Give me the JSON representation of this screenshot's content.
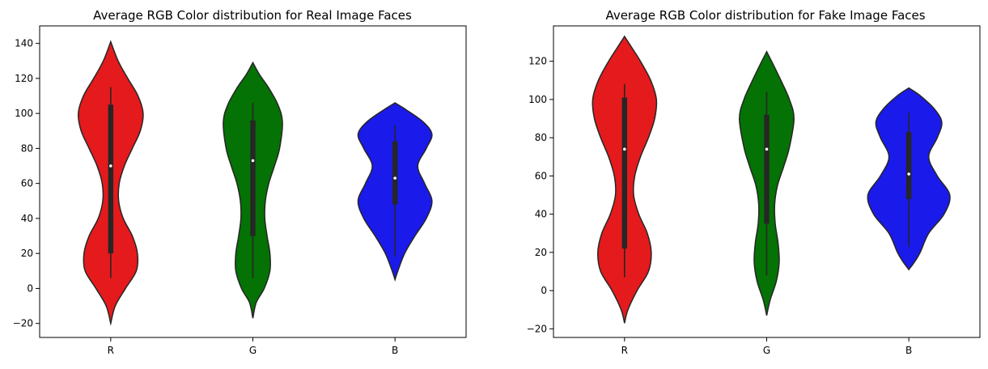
{
  "chart_data": [
    {
      "type": "violin",
      "title": "Average RGB Color distribution for Real Image Faces",
      "xlabel": "",
      "ylabel": "",
      "categories": [
        "R",
        "G",
        "B"
      ],
      "colors": [
        "#e41a1c",
        "#047204",
        "#1a1aea"
      ],
      "ylim": [
        -28,
        150
      ],
      "yticks": [
        -20,
        0,
        20,
        40,
        60,
        80,
        100,
        120,
        140
      ],
      "grid": false,
      "series": [
        {
          "median": 70,
          "q1": 20,
          "q3": 105,
          "whisker_low": 6,
          "whisker_high": 115,
          "range": [
            -20,
            141
          ],
          "density": [
            [
              -20,
              0
            ],
            [
              -10,
              0.08
            ],
            [
              0,
              0.26
            ],
            [
              10,
              0.45
            ],
            [
              20,
              0.47
            ],
            [
              30,
              0.38
            ],
            [
              40,
              0.22
            ],
            [
              50,
              0.14
            ],
            [
              60,
              0.15
            ],
            [
              70,
              0.24
            ],
            [
              80,
              0.38
            ],
            [
              90,
              0.52
            ],
            [
              100,
              0.57
            ],
            [
              110,
              0.48
            ],
            [
              120,
              0.3
            ],
            [
              130,
              0.13
            ],
            [
              141,
              0
            ]
          ]
        },
        {
          "median": 73,
          "q1": 30,
          "q3": 96,
          "whisker_low": 6,
          "whisker_high": 106,
          "range": [
            -17,
            129
          ],
          "density": [
            [
              -17,
              0
            ],
            [
              -8,
              0.06
            ],
            [
              0,
              0.2
            ],
            [
              10,
              0.3
            ],
            [
              20,
              0.3
            ],
            [
              30,
              0.25
            ],
            [
              40,
              0.21
            ],
            [
              50,
              0.22
            ],
            [
              60,
              0.28
            ],
            [
              70,
              0.38
            ],
            [
              80,
              0.47
            ],
            [
              95,
              0.52
            ],
            [
              105,
              0.44
            ],
            [
              115,
              0.27
            ],
            [
              122,
              0.12
            ],
            [
              129,
              0
            ]
          ]
        },
        {
          "median": 63,
          "q1": 48,
          "q3": 84,
          "whisker_low": 18,
          "whisker_high": 93,
          "range": [
            5,
            106
          ],
          "density": [
            [
              5,
              0
            ],
            [
              10,
              0.05
            ],
            [
              20,
              0.17
            ],
            [
              30,
              0.35
            ],
            [
              40,
              0.55
            ],
            [
              50,
              0.65
            ],
            [
              60,
              0.52
            ],
            [
              70,
              0.4
            ],
            [
              80,
              0.55
            ],
            [
              88,
              0.65
            ],
            [
              95,
              0.5
            ],
            [
              102,
              0.2
            ],
            [
              106,
              0
            ]
          ]
        }
      ]
    },
    {
      "type": "violin",
      "title": "Average RGB Color distribution for Fake Image Faces",
      "xlabel": "",
      "ylabel": "",
      "categories": [
        "R",
        "G",
        "B"
      ],
      "colors": [
        "#e41a1c",
        "#047204",
        "#1a1aea"
      ],
      "ylim": [
        -24.5,
        138.5
      ],
      "yticks": [
        -20,
        0,
        20,
        40,
        60,
        80,
        100,
        120
      ],
      "grid": false,
      "series": [
        {
          "median": 74,
          "q1": 22,
          "q3": 101,
          "whisker_low": 7,
          "whisker_high": 108,
          "range": [
            -17,
            133
          ],
          "density": [
            [
              -17,
              0
            ],
            [
              -10,
              0.06
            ],
            [
              0,
              0.22
            ],
            [
              10,
              0.42
            ],
            [
              20,
              0.47
            ],
            [
              30,
              0.4
            ],
            [
              40,
              0.25
            ],
            [
              50,
              0.16
            ],
            [
              60,
              0.18
            ],
            [
              70,
              0.28
            ],
            [
              80,
              0.42
            ],
            [
              90,
              0.53
            ],
            [
              100,
              0.56
            ],
            [
              110,
              0.46
            ],
            [
              120,
              0.28
            ],
            [
              127,
              0.13
            ],
            [
              133,
              0
            ]
          ]
        },
        {
          "median": 74,
          "q1": 35,
          "q3": 92,
          "whisker_low": 8,
          "whisker_high": 104,
          "range": [
            -13,
            125
          ],
          "density": [
            [
              -13,
              0
            ],
            [
              -5,
              0.06
            ],
            [
              5,
              0.17
            ],
            [
              15,
              0.22
            ],
            [
              25,
              0.2
            ],
            [
              35,
              0.15
            ],
            [
              45,
              0.14
            ],
            [
              55,
              0.19
            ],
            [
              65,
              0.3
            ],
            [
              75,
              0.4
            ],
            [
              90,
              0.48
            ],
            [
              100,
              0.4
            ],
            [
              110,
              0.25
            ],
            [
              118,
              0.12
            ],
            [
              125,
              0
            ]
          ]
        },
        {
          "median": 61,
          "q1": 48,
          "q3": 83,
          "whisker_low": 23,
          "whisker_high": 93,
          "range": [
            11,
            106
          ],
          "density": [
            [
              11,
              0
            ],
            [
              15,
              0.1
            ],
            [
              20,
              0.2
            ],
            [
              30,
              0.35
            ],
            [
              40,
              0.62
            ],
            [
              50,
              0.72
            ],
            [
              60,
              0.5
            ],
            [
              70,
              0.35
            ],
            [
              80,
              0.5
            ],
            [
              88,
              0.58
            ],
            [
              95,
              0.45
            ],
            [
              102,
              0.2
            ],
            [
              106,
              0
            ]
          ]
        }
      ]
    }
  ]
}
